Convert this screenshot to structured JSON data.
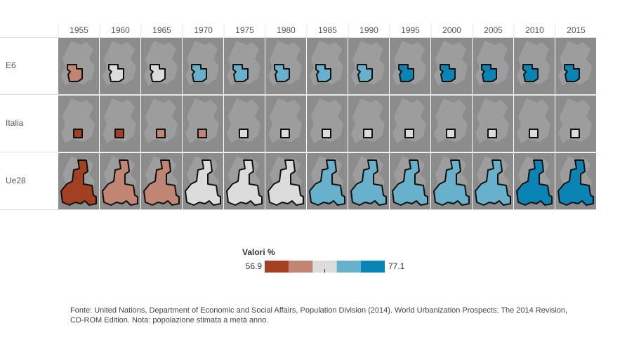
{
  "chart_data": {
    "type": "choropleth_grid",
    "categories": [
      "1955",
      "1960",
      "1965",
      "1970",
      "1975",
      "1980",
      "1985",
      "1990",
      "1995",
      "2000",
      "2005",
      "2010",
      "2015"
    ],
    "series": [
      {
        "name": "E6",
        "values": [
          62.5,
          65.8,
          68.2,
          70.3,
          71.5,
          72.1,
          72.5,
          72.9,
          73.4,
          74.2,
          75.2,
          76.2,
          77.1
        ]
      },
      {
        "name": "Italia",
        "values": [
          56.9,
          59.4,
          61.9,
          64.3,
          65.6,
          66.6,
          66.8,
          66.7,
          66.9,
          67.2,
          67.7,
          68.3,
          69.0
        ]
      },
      {
        "name": "Ue28",
        "values": [
          59.5,
          62.0,
          64.2,
          66.3,
          67.9,
          68.9,
          69.6,
          70.3,
          70.9,
          71.6,
          72.4,
          73.2,
          74.0
        ]
      }
    ],
    "legend": {
      "title": "Valori %",
      "min": 56.9,
      "max": 77.1,
      "colors": [
        "#a33f22",
        "#c08573",
        "#dcdcdc",
        "#68b1cc",
        "#0a84b5"
      ]
    },
    "source": "Fonte: United Nations, Department of Economic and Social Affairs, Population Division (2014). World Urbanization Prospects: The 2014 Revision, CD-ROM Edition. Nota: popolazione stimata a metà anno."
  }
}
